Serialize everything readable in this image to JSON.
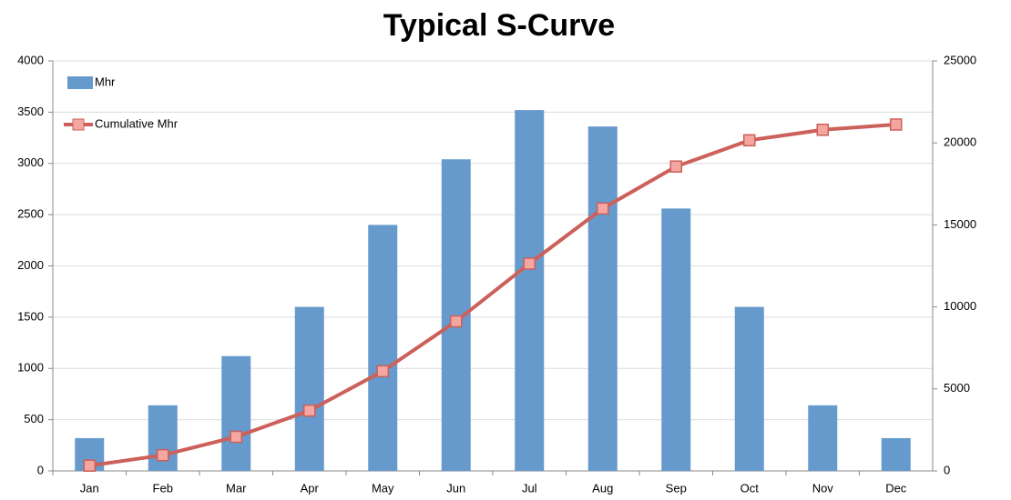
{
  "chart_data": {
    "type": "combo",
    "title": "Typical S-Curve",
    "categories": [
      "Jan",
      "Feb",
      "Mar",
      "Apr",
      "May",
      "Jun",
      "Jul",
      "Aug",
      "Sep",
      "Oct",
      "Nov",
      "Dec"
    ],
    "series": [
      {
        "name": "Mhr",
        "type": "bar",
        "axis": "y",
        "color": "#6699cc",
        "values": [
          320,
          640,
          1120,
          1600,
          2400,
          3040,
          3520,
          3360,
          2560,
          1600,
          640,
          320
        ]
      },
      {
        "name": "Cumulative Mhr",
        "type": "line",
        "axis": "y2",
        "color": "#cc605a",
        "marker_color": "#f4a7a1",
        "values": [
          320,
          960,
          2080,
          3680,
          6080,
          9120,
          12640,
          16000,
          18560,
          20160,
          20800,
          21120
        ]
      }
    ],
    "ylim": [
      0,
      4000
    ],
    "yticks": [
      0,
      500,
      1000,
      1500,
      2000,
      2500,
      3000,
      3500,
      4000
    ],
    "y2lim": [
      0,
      25000
    ],
    "y2ticks": [
      0,
      5000,
      10000,
      15000,
      20000,
      25000
    ],
    "grid": true,
    "legend": "top-left"
  }
}
